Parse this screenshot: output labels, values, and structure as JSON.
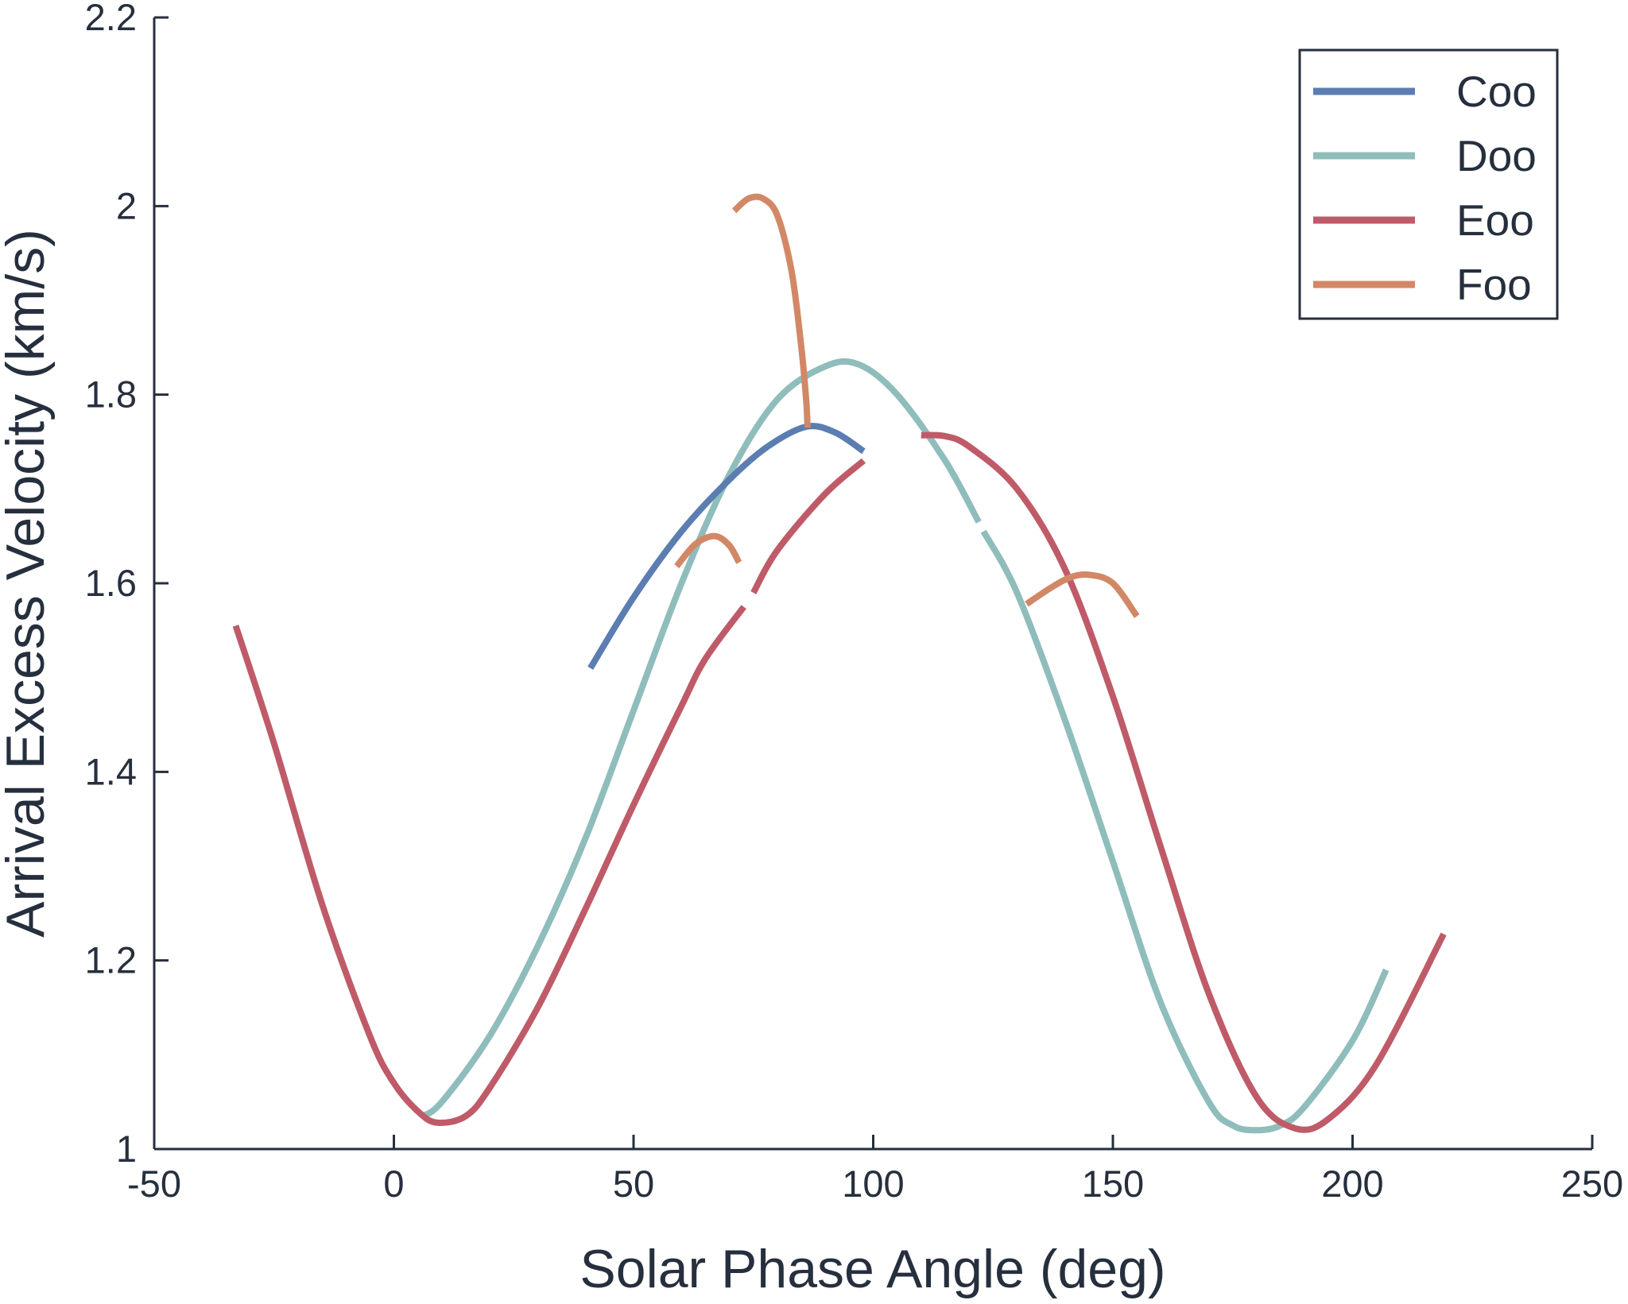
{
  "chart_data": {
    "type": "line",
    "xlabel": "Solar Phase Angle (deg)",
    "ylabel": "Arrival Excess Velocity (km/s)",
    "xlim": [
      -50,
      250
    ],
    "ylim": [
      1,
      2.2
    ],
    "xticks": [
      -50,
      0,
      50,
      100,
      150,
      200,
      250
    ],
    "xtick_labels": [
      "-50",
      "0",
      "50",
      "100",
      "150",
      "200",
      "250"
    ],
    "yticks": [
      1,
      1.2,
      1.4,
      1.6,
      1.8,
      2,
      2.2
    ],
    "ytick_labels": [
      "1",
      "1.2",
      "1.4",
      "1.6",
      "1.8",
      "2",
      "2.2"
    ],
    "grid": false,
    "legend_position": "top-right",
    "series": [
      {
        "name": "Coo",
        "color": "#5b7db1",
        "segments": [
          {
            "x": [
              41,
              50,
              60,
              70,
              78,
              86,
              92,
              98
            ],
            "y": [
              1.51,
              1.585,
              1.655,
              1.71,
              1.745,
              1.766,
              1.76,
              1.74
            ]
          }
        ]
      },
      {
        "name": "Doo",
        "color": "#8fbdbb",
        "segments": [
          {
            "x": [
              6,
              10,
              20,
              30,
              40,
              50,
              60,
              70,
              80,
              90,
              97,
              105,
              115,
              122
            ],
            "y": [
              1.035,
              1.05,
              1.12,
              1.215,
              1.33,
              1.465,
              1.6,
              1.715,
              1.795,
              1.83,
              1.832,
              1.8,
              1.73,
              1.665
            ]
          },
          {
            "x": [
              123,
              130,
              140,
              150,
              160,
              170,
              175,
              180,
              185,
              190,
              200,
              207
            ],
            "y": [
              1.655,
              1.59,
              1.455,
              1.305,
              1.155,
              1.05,
              1.025,
              1.02,
              1.025,
              1.045,
              1.115,
              1.19
            ]
          }
        ]
      },
      {
        "name": "Eoo",
        "color": "#bf5b68",
        "segments": [
          {
            "x": [
              -33,
              -25,
              -15,
              -5,
              0,
              5,
              9,
              15,
              20,
              30,
              40,
              50,
              60,
              65,
              73
            ],
            "y": [
              1.555,
              1.43,
              1.26,
              1.12,
              1.07,
              1.04,
              1.028,
              1.035,
              1.065,
              1.15,
              1.255,
              1.365,
              1.47,
              1.52,
              1.575
            ]
          },
          {
            "x": [
              75,
              80,
              90,
              98
            ],
            "y": [
              1.59,
              1.635,
              1.695,
              1.73
            ]
          },
          {
            "x": [
              110,
              115,
              120,
              130,
              140,
              150,
              160,
              170,
              180,
              188,
              195,
              205,
              219
            ],
            "y": [
              1.757,
              1.756,
              1.745,
              1.7,
              1.615,
              1.48,
              1.32,
              1.165,
              1.055,
              1.022,
              1.032,
              1.09,
              1.228
            ]
          }
        ]
      },
      {
        "name": "Foo",
        "color": "#d28866",
        "segments": [
          {
            "x": [
              71,
              74,
              77,
              80,
              83,
              85,
              86,
              86.3
            ],
            "y": [
              1.995,
              2.008,
              2.008,
              1.99,
              1.93,
              1.85,
              1.795,
              1.765
            ]
          },
          {
            "x": [
              59,
              63,
              67,
              70,
              72
            ],
            "y": [
              1.618,
              1.642,
              1.65,
              1.64,
              1.622
            ]
          },
          {
            "x": [
              132,
              137,
              141,
              145,
              150,
              155
            ],
            "y": [
              1.578,
              1.595,
              1.606,
              1.609,
              1.6,
              1.565
            ]
          }
        ]
      }
    ]
  }
}
